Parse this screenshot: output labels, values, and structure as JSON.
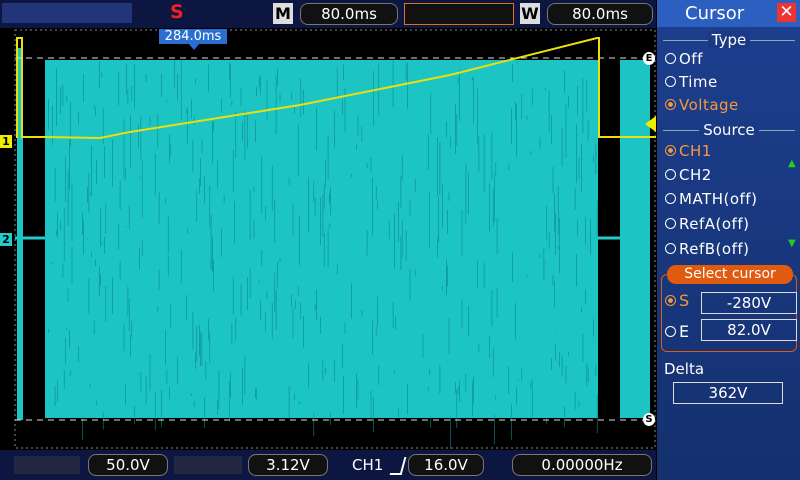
{
  "toolbar": {
    "stop_icon": "S",
    "mode": "M",
    "time_base": "80.0ms",
    "window_label": "W",
    "window_time": "80.0ms"
  },
  "trigger_position": "284.0ms",
  "markers": {
    "ch1": "1",
    "ch2": "2",
    "cursor_e": "E",
    "cursor_s": "S"
  },
  "menu": {
    "title": "Cursor",
    "type": {
      "label": "Type",
      "options": [
        "Off",
        "Time",
        "Voltage"
      ]
    },
    "source": {
      "label": "Source",
      "options": [
        "CH1",
        "CH2",
        "MATH(off)",
        "RefA(off)",
        "RefB(off)"
      ]
    },
    "select_cursor": "Select cursor",
    "s_label": "S",
    "s_value": "-280V",
    "e_label": "E",
    "e_value": "82.0V",
    "delta_label": "Delta",
    "delta_value": "362V"
  },
  "status": {
    "ch1_scale": "50.0V",
    "ch2_scale": "3.12V",
    "trigger_source": "CH1",
    "trigger_level": "16.0V",
    "frequency": "0.00000Hz"
  }
}
